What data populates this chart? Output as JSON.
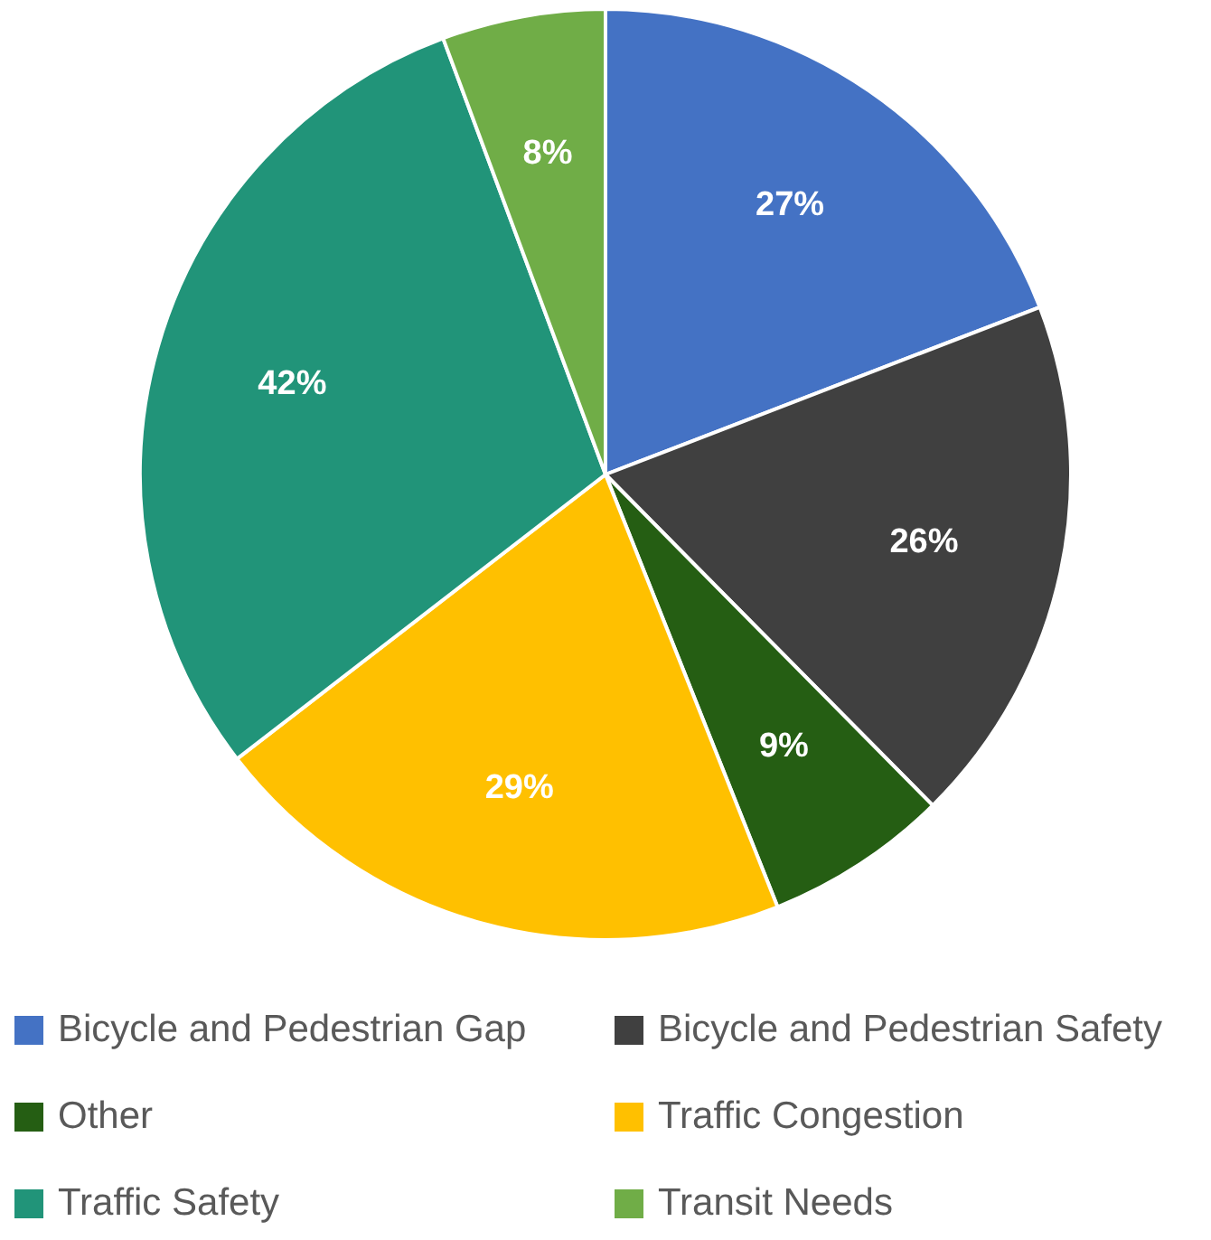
{
  "chart_data": {
    "type": "pie",
    "categories": [
      "Bicycle and Pedestrian Gap",
      "Bicycle and Pedestrian Safety",
      "Other",
      "Traffic Congestion",
      "Traffic Safety",
      "Transit Needs"
    ],
    "values": [
      27,
      26,
      9,
      29,
      42,
      8
    ],
    "colors": [
      "#4472c4",
      "#404040",
      "#255e13",
      "#ffc000",
      "#219479",
      "#70ad47"
    ],
    "value_labels": [
      "27%",
      "26%",
      "9%",
      "29%",
      "42%",
      "8%"
    ],
    "legend": "bottom"
  }
}
